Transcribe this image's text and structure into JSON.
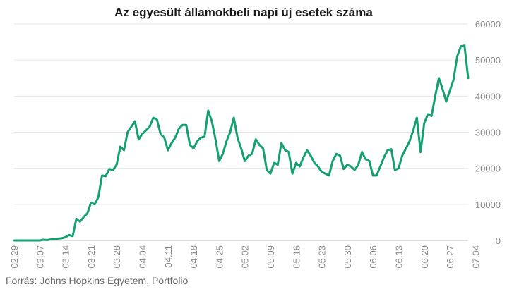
{
  "chart_data": {
    "type": "line",
    "title": "Az egyesült államokbeli napi új esetek száma",
    "source": "Forrás: Johns Hopkins Egyetem, Portfolio",
    "xlabel": "",
    "ylabel": "",
    "ylim": [
      0,
      60000
    ],
    "y_ticks": [
      0,
      10000,
      20000,
      30000,
      40000,
      50000,
      60000
    ],
    "y_axis_position": "right",
    "grid": "horizontal",
    "x_tick_labels": [
      "02.29",
      "03.07",
      "03.14",
      "03.21",
      "03.28",
      "04.04",
      "04.11",
      "04.18",
      "04.25",
      "05.02",
      "05.09",
      "05.16",
      "05.23",
      "05.30",
      "06.06",
      "06.13",
      "06.20",
      "06.27",
      "07.04"
    ],
    "line_color": "#15a071",
    "series": [
      {
        "values": [
          0,
          0,
          0,
          0,
          0,
          0,
          0,
          0,
          200,
          100,
          300,
          400,
          500,
          600,
          900,
          1500,
          1200,
          6000,
          5200,
          6500,
          7500,
          10500,
          10000,
          12000,
          18000,
          17800,
          19800,
          19500,
          21000,
          26000,
          25000,
          30000,
          31500,
          33000,
          28000,
          29500,
          30500,
          31500,
          34000,
          33500,
          29500,
          28500,
          25000,
          27000,
          28500,
          31000,
          32000,
          32000,
          26500,
          25500,
          27500,
          28500,
          28700,
          36000,
          33000,
          28000,
          22000,
          24000,
          27500,
          30000,
          34000,
          28500,
          25500,
          22000,
          23500,
          24000,
          28000,
          26500,
          25500,
          19500,
          18500,
          21500,
          21000,
          27000,
          25000,
          24500,
          18500,
          21500,
          20500,
          23000,
          25000,
          23500,
          21500,
          20500,
          19000,
          18500,
          18000,
          22000,
          24000,
          23500,
          19800,
          21000,
          20500,
          19500,
          21000,
          24500,
          22500,
          22000,
          18000,
          18000,
          20500,
          23000,
          25000,
          25300,
          19500,
          20000,
          23500,
          25500,
          27500,
          30500,
          34000,
          24500,
          32500,
          35000,
          34500,
          40000,
          45000,
          42000,
          38500,
          41500,
          44500,
          51000,
          53800,
          54000,
          45000
        ]
      }
    ]
  }
}
